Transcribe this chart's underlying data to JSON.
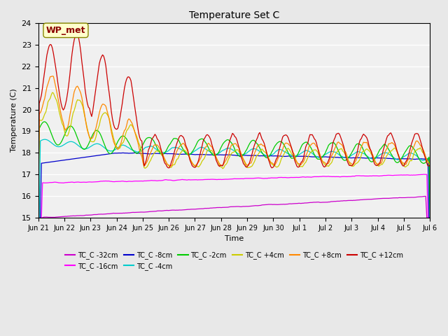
{
  "title": "Temperature Set C",
  "xlabel": "Time",
  "ylabel": "Temperature (C)",
  "ylim": [
    15.0,
    24.0
  ],
  "yticks": [
    15.0,
    16.0,
    17.0,
    18.0,
    19.0,
    20.0,
    21.0,
    22.0,
    23.0,
    24.0
  ],
  "annotation": "WP_met",
  "annotation_color": "#8B0000",
  "annotation_bg": "#FFFFCC",
  "series_order": [
    "TC_C -32cm",
    "TC_C -16cm",
    "TC_C -8cm",
    "TC_C -4cm",
    "TC_C -2cm",
    "TC_C +4cm",
    "TC_C +8cm",
    "TC_C +12cm"
  ],
  "series_colors": [
    "#CC00CC",
    "#FF00FF",
    "#0000CC",
    "#00CCCC",
    "#00CC00",
    "#CCCC00",
    "#FF8800",
    "#CC0000"
  ],
  "x_tick_labels": [
    "Jun 21",
    "Jun 22",
    "Jun 23",
    "Jun 24",
    "Jun 25",
    "Jun 26",
    "Jun 27",
    "Jun 28",
    "Jun 29",
    "Jun 30",
    "Jul 1",
    "Jul 2",
    "Jul 3",
    "Jul 4",
    "Jul 5",
    "Jul 6"
  ],
  "background_color": "#E8E8E8",
  "plot_bg_color": "#F0F0F0",
  "grid_color": "#FFFFFF",
  "n_days": 15
}
